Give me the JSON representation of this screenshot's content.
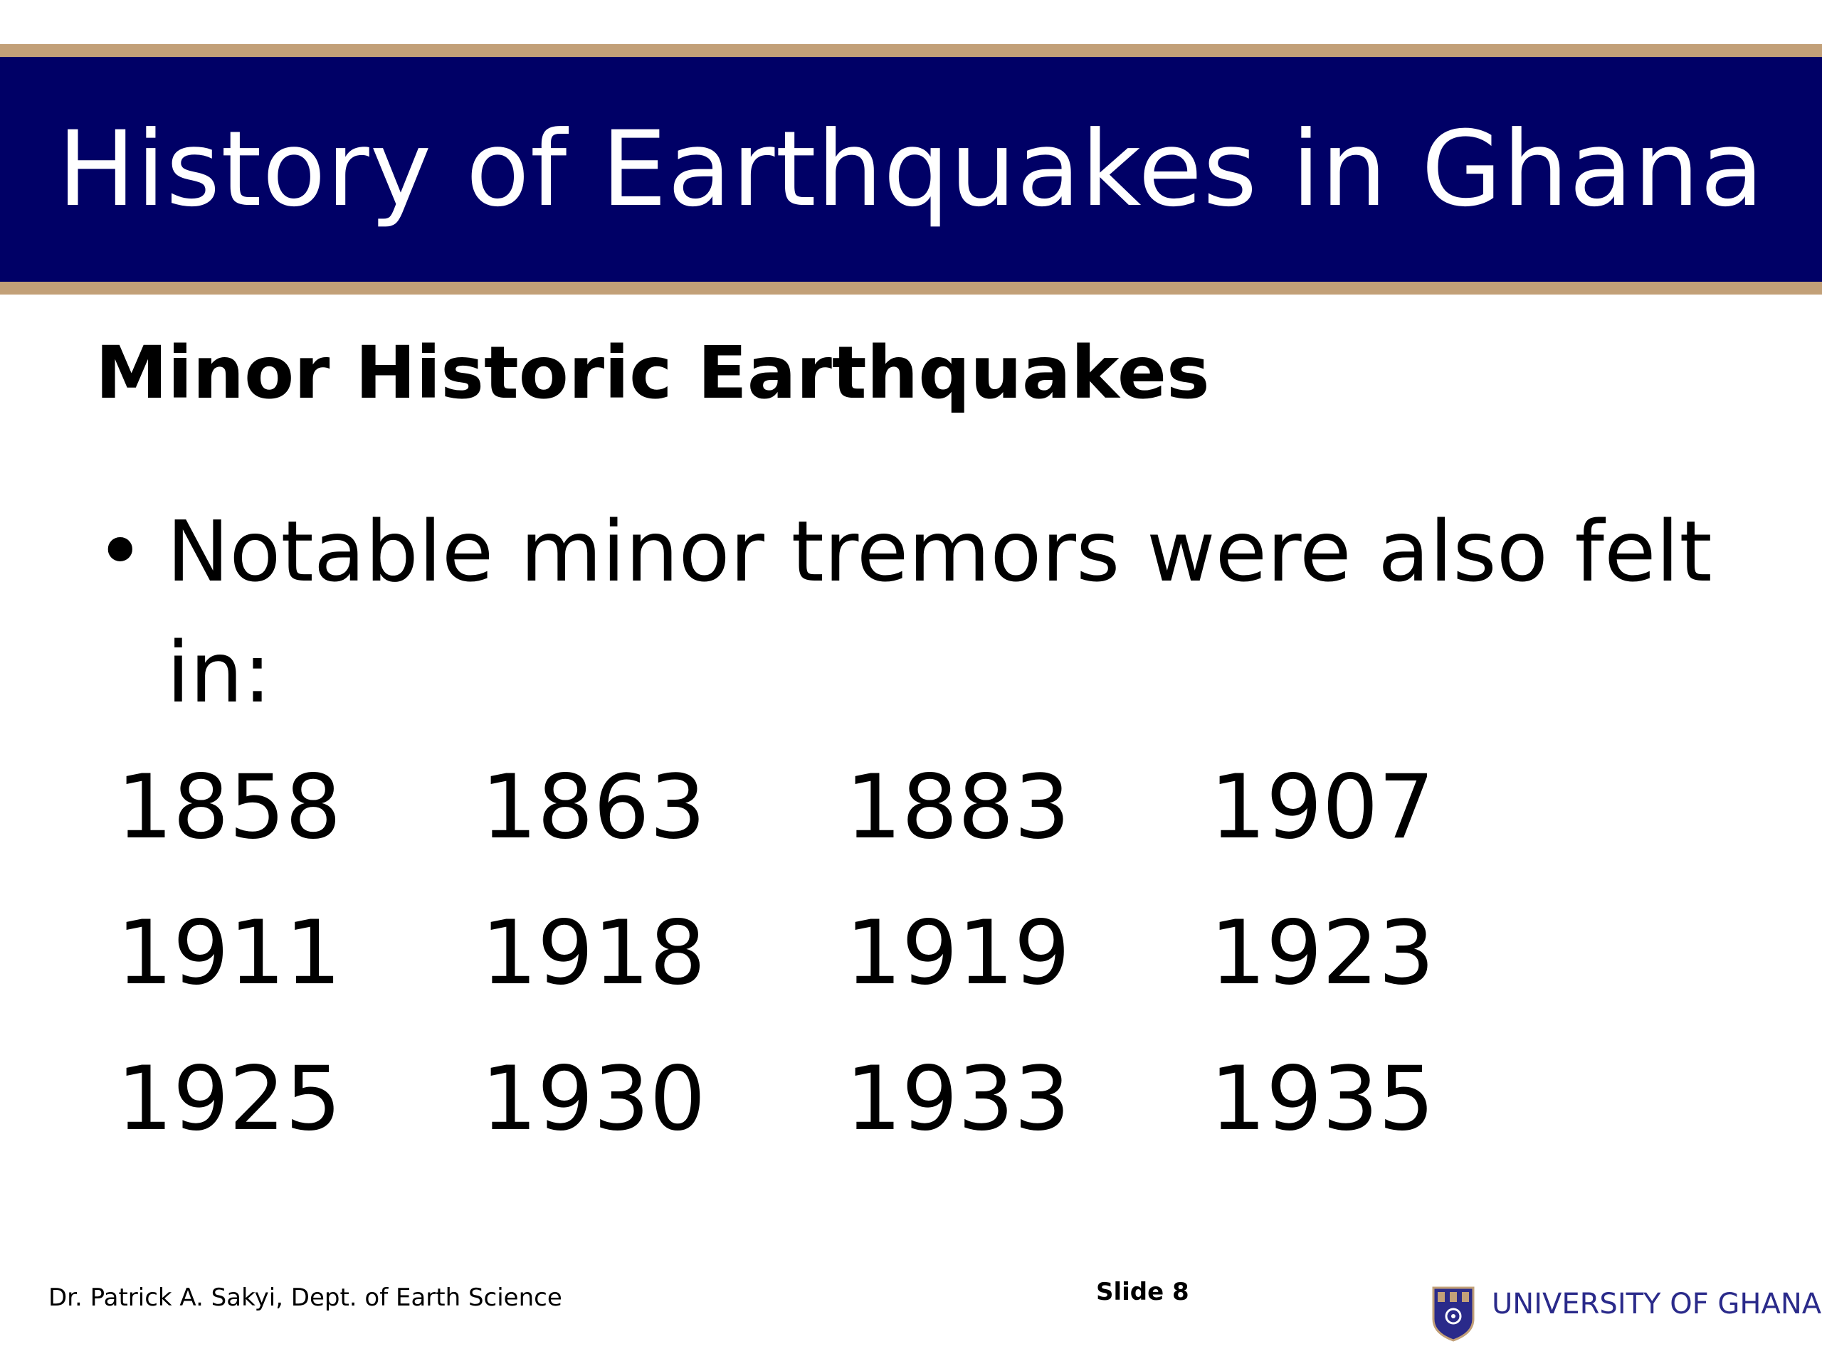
{
  "slide": {
    "title": "History of Earthquakes in Ghana",
    "subtitle": "Minor Historic Earthquakes",
    "bullet_symbol": "•",
    "bullet_text": "Notable minor tremors were also felt in:",
    "years": [
      [
        "1858",
        "1863",
        "1883",
        "1907"
      ],
      [
        "1911",
        "1918",
        "1919",
        "1923"
      ],
      [
        "1925",
        "1930",
        "1933",
        "1935"
      ]
    ]
  },
  "footer": {
    "author": "Dr. Patrick A. Sakyi, Dept. of Earth Science",
    "slide_number": "Slide 8",
    "logo_icon": "university-crest-icon",
    "university": "UNIVERSITY OF GHANA"
  },
  "colors": {
    "title_band": "#000066",
    "band_border": "#c2a078",
    "university_text": "#2a2a8a"
  }
}
